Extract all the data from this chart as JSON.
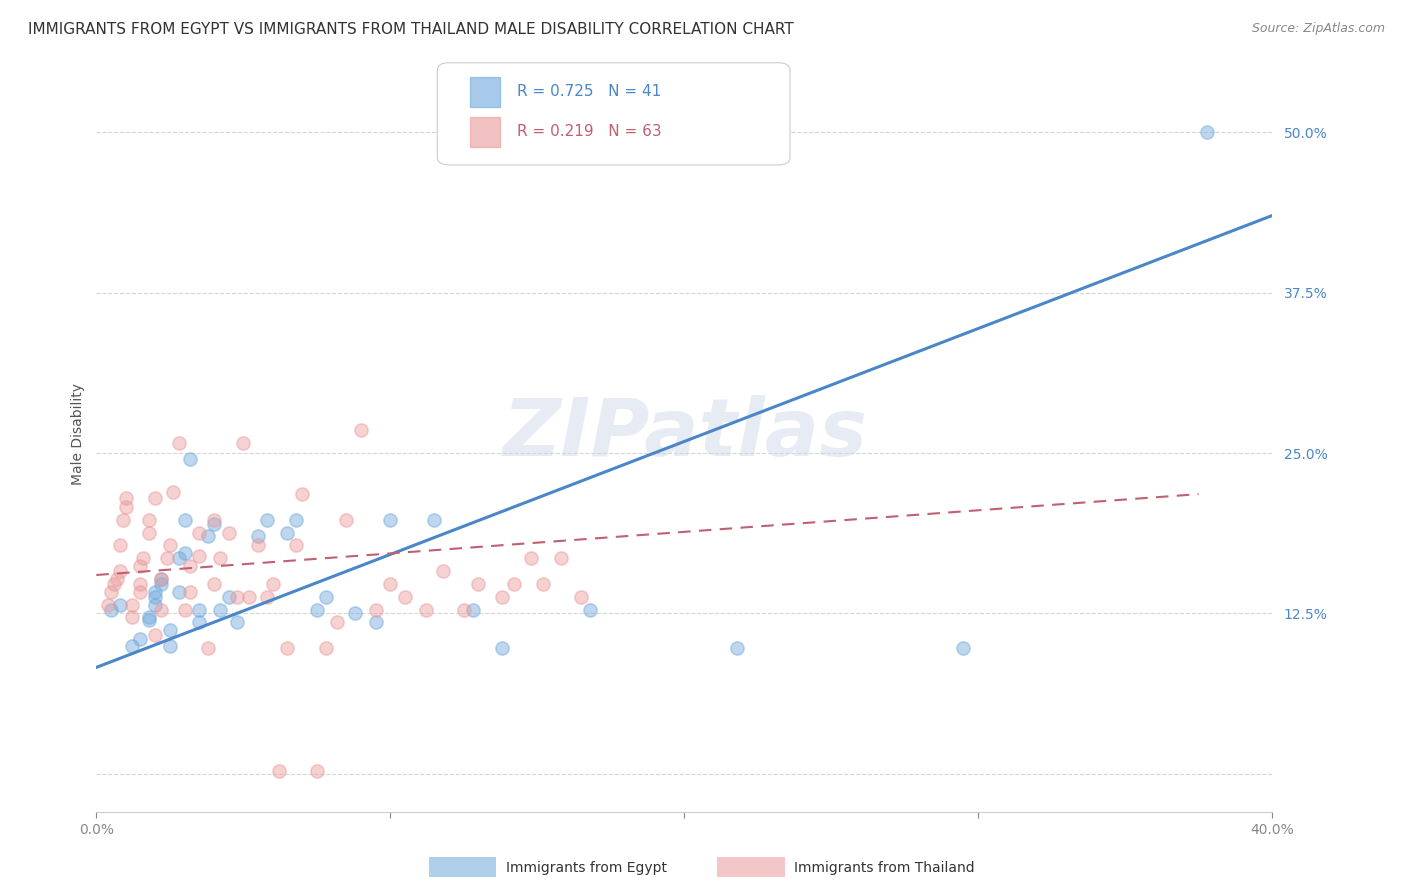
{
  "title": "IMMIGRANTS FROM EGYPT VS IMMIGRANTS FROM THAILAND MALE DISABILITY CORRELATION CHART",
  "source": "Source: ZipAtlas.com",
  "ylabel_label": "Male Disability",
  "xlim": [
    0.0,
    0.4
  ],
  "ylim": [
    -0.03,
    0.56
  ],
  "yticks": [
    0.0,
    0.125,
    0.25,
    0.375,
    0.5
  ],
  "ytick_labels": [
    "",
    "12.5%",
    "25.0%",
    "37.5%",
    "50.0%"
  ],
  "xticks": [
    0.0,
    0.1,
    0.2,
    0.3,
    0.4
  ],
  "xtick_labels": [
    "0.0%",
    "",
    "",
    "",
    "40.0%"
  ],
  "legend_egypt_R": "0.725",
  "legend_egypt_N": "41",
  "legend_thailand_R": "0.219",
  "legend_thailand_N": "63",
  "egypt_color": "#6fa8dc",
  "thailand_color": "#ea9999",
  "egypt_line_color": "#4a86c8",
  "thailand_line_color": "#c06070",
  "background_color": "#ffffff",
  "grid_color": "#cccccc",
  "watermark": "ZIPatlas",
  "egypt_scatter_x": [
    0.005,
    0.008,
    0.012,
    0.015,
    0.018,
    0.018,
    0.02,
    0.02,
    0.02,
    0.022,
    0.022,
    0.025,
    0.025,
    0.028,
    0.028,
    0.03,
    0.03,
    0.032,
    0.035,
    0.035,
    0.038,
    0.04,
    0.042,
    0.045,
    0.048,
    0.055,
    0.058,
    0.065,
    0.068,
    0.075,
    0.078,
    0.088,
    0.095,
    0.1,
    0.115,
    0.128,
    0.138,
    0.168,
    0.218,
    0.295,
    0.378
  ],
  "egypt_scatter_y": [
    0.128,
    0.132,
    0.1,
    0.105,
    0.12,
    0.122,
    0.132,
    0.138,
    0.142,
    0.148,
    0.152,
    0.1,
    0.112,
    0.142,
    0.168,
    0.172,
    0.198,
    0.245,
    0.118,
    0.128,
    0.185,
    0.195,
    0.128,
    0.138,
    0.118,
    0.185,
    0.198,
    0.188,
    0.198,
    0.128,
    0.138,
    0.125,
    0.118,
    0.198,
    0.198,
    0.128,
    0.098,
    0.128,
    0.098,
    0.098,
    0.5
  ],
  "thailand_scatter_x": [
    0.004,
    0.005,
    0.006,
    0.007,
    0.008,
    0.008,
    0.009,
    0.01,
    0.01,
    0.012,
    0.012,
    0.015,
    0.015,
    0.015,
    0.016,
    0.018,
    0.018,
    0.02,
    0.02,
    0.022,
    0.022,
    0.024,
    0.025,
    0.026,
    0.028,
    0.03,
    0.032,
    0.032,
    0.035,
    0.035,
    0.038,
    0.04,
    0.04,
    0.042,
    0.045,
    0.048,
    0.05,
    0.052,
    0.055,
    0.058,
    0.06,
    0.062,
    0.065,
    0.068,
    0.07,
    0.075,
    0.078,
    0.082,
    0.085,
    0.09,
    0.095,
    0.1,
    0.105,
    0.112,
    0.118,
    0.125,
    0.13,
    0.138,
    0.142,
    0.148,
    0.152,
    0.158,
    0.165
  ],
  "thailand_scatter_y": [
    0.132,
    0.142,
    0.148,
    0.152,
    0.158,
    0.178,
    0.198,
    0.208,
    0.215,
    0.122,
    0.132,
    0.142,
    0.148,
    0.162,
    0.168,
    0.188,
    0.198,
    0.215,
    0.108,
    0.128,
    0.152,
    0.168,
    0.178,
    0.22,
    0.258,
    0.128,
    0.142,
    0.162,
    0.17,
    0.188,
    0.098,
    0.148,
    0.198,
    0.168,
    0.188,
    0.138,
    0.258,
    0.138,
    0.178,
    0.138,
    0.148,
    0.002,
    0.098,
    0.178,
    0.218,
    0.002,
    0.098,
    0.118,
    0.198,
    0.268,
    0.128,
    0.148,
    0.138,
    0.128,
    0.158,
    0.128,
    0.148,
    0.138,
    0.148,
    0.168,
    0.148,
    0.168,
    0.138
  ],
  "egypt_trend_x": [
    0.0,
    0.4
  ],
  "egypt_trend_y": [
    0.083,
    0.435
  ],
  "thailand_trend_x": [
    0.0,
    0.375
  ],
  "thailand_trend_y": [
    0.155,
    0.218
  ],
  "title_fontsize": 11,
  "axis_label_fontsize": 10,
  "tick_fontsize": 10,
  "legend_fontsize": 11
}
